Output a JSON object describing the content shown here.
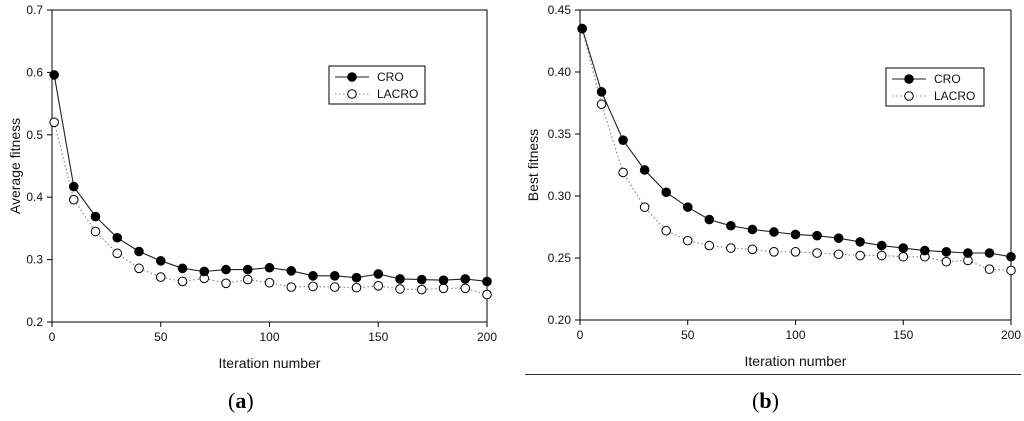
{
  "chart_data": [
    {
      "type": "line",
      "panel": "a",
      "xlabel": "Iteration number",
      "ylabel": "Average fitness",
      "xlim": [
        0,
        200
      ],
      "ylim": [
        0.2,
        0.7
      ],
      "xticks": [
        "0",
        "50",
        "100",
        "150",
        "200"
      ],
      "yticks": [
        "0.2",
        "0.3",
        "0.4",
        "0.5",
        "0.6",
        "0.7"
      ],
      "legend_position": "top-right",
      "x": [
        1,
        10,
        20,
        30,
        40,
        50,
        60,
        70,
        80,
        90,
        100,
        110,
        120,
        130,
        140,
        150,
        160,
        170,
        180,
        190,
        200
      ],
      "series": [
        {
          "name": "CRO",
          "marker": "filled",
          "line": "solid",
          "values": [
            0.596,
            0.417,
            0.369,
            0.335,
            0.313,
            0.298,
            0.286,
            0.281,
            0.284,
            0.284,
            0.287,
            0.282,
            0.274,
            0.274,
            0.271,
            0.277,
            0.269,
            0.268,
            0.267,
            0.269,
            0.265
          ]
        },
        {
          "name": "LACRO",
          "marker": "open",
          "line": "dotted",
          "values": [
            0.52,
            0.396,
            0.345,
            0.31,
            0.286,
            0.272,
            0.265,
            0.27,
            0.262,
            0.268,
            0.263,
            0.256,
            0.257,
            0.256,
            0.255,
            0.258,
            0.253,
            0.252,
            0.254,
            0.254,
            0.244
          ]
        }
      ]
    },
    {
      "type": "line",
      "panel": "b",
      "xlabel": "Iteration number",
      "ylabel": "Best fitness",
      "xlim": [
        0,
        200
      ],
      "ylim": [
        0.2,
        0.45
      ],
      "xticks": [
        "0",
        "50",
        "100",
        "150",
        "200"
      ],
      "yticks": [
        "0.20",
        "0.25",
        "0.30",
        "0.35",
        "0.40",
        "0.45"
      ],
      "legend_position": "top-right",
      "x": [
        1,
        10,
        20,
        30,
        40,
        50,
        60,
        70,
        80,
        90,
        100,
        110,
        120,
        130,
        140,
        150,
        160,
        170,
        180,
        190,
        200
      ],
      "series": [
        {
          "name": "CRO",
          "marker": "filled",
          "line": "solid",
          "values": [
            0.435,
            0.384,
            0.345,
            0.321,
            0.303,
            0.291,
            0.281,
            0.276,
            0.273,
            0.271,
            0.269,
            0.268,
            0.266,
            0.263,
            0.26,
            0.258,
            0.256,
            0.255,
            0.254,
            0.254,
            0.251
          ]
        },
        {
          "name": "LACRO",
          "marker": "open",
          "line": "dotted",
          "values": [
            0.435,
            0.374,
            0.319,
            0.291,
            0.272,
            0.264,
            0.26,
            0.258,
            0.257,
            0.255,
            0.255,
            0.254,
            0.253,
            0.252,
            0.252,
            0.251,
            0.251,
            0.247,
            0.248,
            0.241,
            0.24
          ]
        }
      ]
    }
  ],
  "captions": {
    "a": "a",
    "b": "b"
  }
}
